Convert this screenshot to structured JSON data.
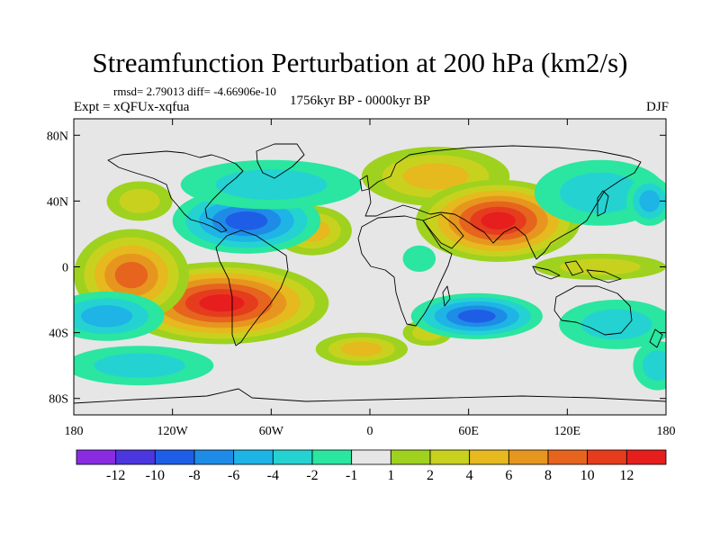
{
  "title": "Streamfunction Perturbation at 200 hPa (km2/s)",
  "stats": "rmsd= 2.79013 diff= -4.66906e-10",
  "experiment": "Expt = xQFUx-xqfua",
  "period": "1756kyr BP - 0000kyr BP",
  "season": "DJF",
  "map": {
    "background_color": "#e6e6e6",
    "lat_ticks": [
      "80N",
      "40N",
      "0",
      "40S",
      "80S"
    ],
    "lon_ticks": [
      "180",
      "120W",
      "60W",
      "0",
      "60E",
      "120E",
      "180"
    ],
    "lat_values": [
      80,
      40,
      0,
      -40,
      -80
    ],
    "lon_values": [
      -180,
      -120,
      -60,
      0,
      60,
      120,
      180
    ],
    "lat_range": [
      -90,
      90
    ],
    "lon_range": [
      -180,
      180
    ]
  },
  "colorbar": {
    "labels": [
      "-12",
      "-10",
      "-8",
      "-6",
      "-4",
      "-2",
      "-1",
      "1",
      "2",
      "4",
      "6",
      "8",
      "10",
      "12"
    ],
    "colors": [
      "#8a2be2",
      "#4b36e0",
      "#1e5ee6",
      "#1e8ce6",
      "#1eb4e6",
      "#24d2d2",
      "#2ae6a0",
      "#e6e6e6",
      "#9ed21e",
      "#c8d21e",
      "#e6b91e",
      "#e6961e",
      "#e6641e",
      "#e63c1e",
      "#e61e1e"
    ]
  },
  "anomalies": [
    {
      "lon": -90,
      "lat": -22,
      "rx": 65,
      "ry": 25,
      "level": 12
    },
    {
      "lon": -145,
      "lat": -5,
      "rx": 35,
      "ry": 28,
      "level": 8
    },
    {
      "lon": -5,
      "lat": -50,
      "rx": 28,
      "ry": 10,
      "level": 4
    },
    {
      "lon": -140,
      "lat": 40,
      "rx": 20,
      "ry": 12,
      "level": 2
    },
    {
      "lon": -35,
      "lat": 22,
      "rx": 24,
      "ry": 15,
      "level": 4
    },
    {
      "lon": 40,
      "lat": 55,
      "rx": 45,
      "ry": 18,
      "level": 4
    },
    {
      "lon": 78,
      "lat": 28,
      "rx": 50,
      "ry": 25,
      "level": 12
    },
    {
      "lon": 140,
      "lat": 0,
      "rx": 40,
      "ry": 8,
      "level": 2
    },
    {
      "lon": 35,
      "lat": -40,
      "rx": 15,
      "ry": 8,
      "level": 2
    },
    {
      "lon": -75,
      "lat": 28,
      "rx": 45,
      "ry": 20,
      "level": -8
    },
    {
      "lon": -160,
      "lat": -30,
      "rx": 35,
      "ry": 15,
      "level": -4
    },
    {
      "lon": -140,
      "lat": -60,
      "rx": 45,
      "ry": 12,
      "level": -2
    },
    {
      "lon": -60,
      "lat": 50,
      "rx": 55,
      "ry": 15,
      "level": -2
    },
    {
      "lon": 65,
      "lat": -30,
      "rx": 40,
      "ry": 14,
      "level": -8
    },
    {
      "lon": 140,
      "lat": 45,
      "rx": 40,
      "ry": 20,
      "level": -2
    },
    {
      "lon": 170,
      "lat": 40,
      "rx": 14,
      "ry": 15,
      "level": -4
    },
    {
      "lon": 150,
      "lat": -35,
      "rx": 35,
      "ry": 15,
      "level": -2
    },
    {
      "lon": 175,
      "lat": -60,
      "rx": 15,
      "ry": 15,
      "level": -2
    },
    {
      "lon": 30,
      "lat": 5,
      "rx": 10,
      "ry": 8,
      "level": -1
    }
  ]
}
